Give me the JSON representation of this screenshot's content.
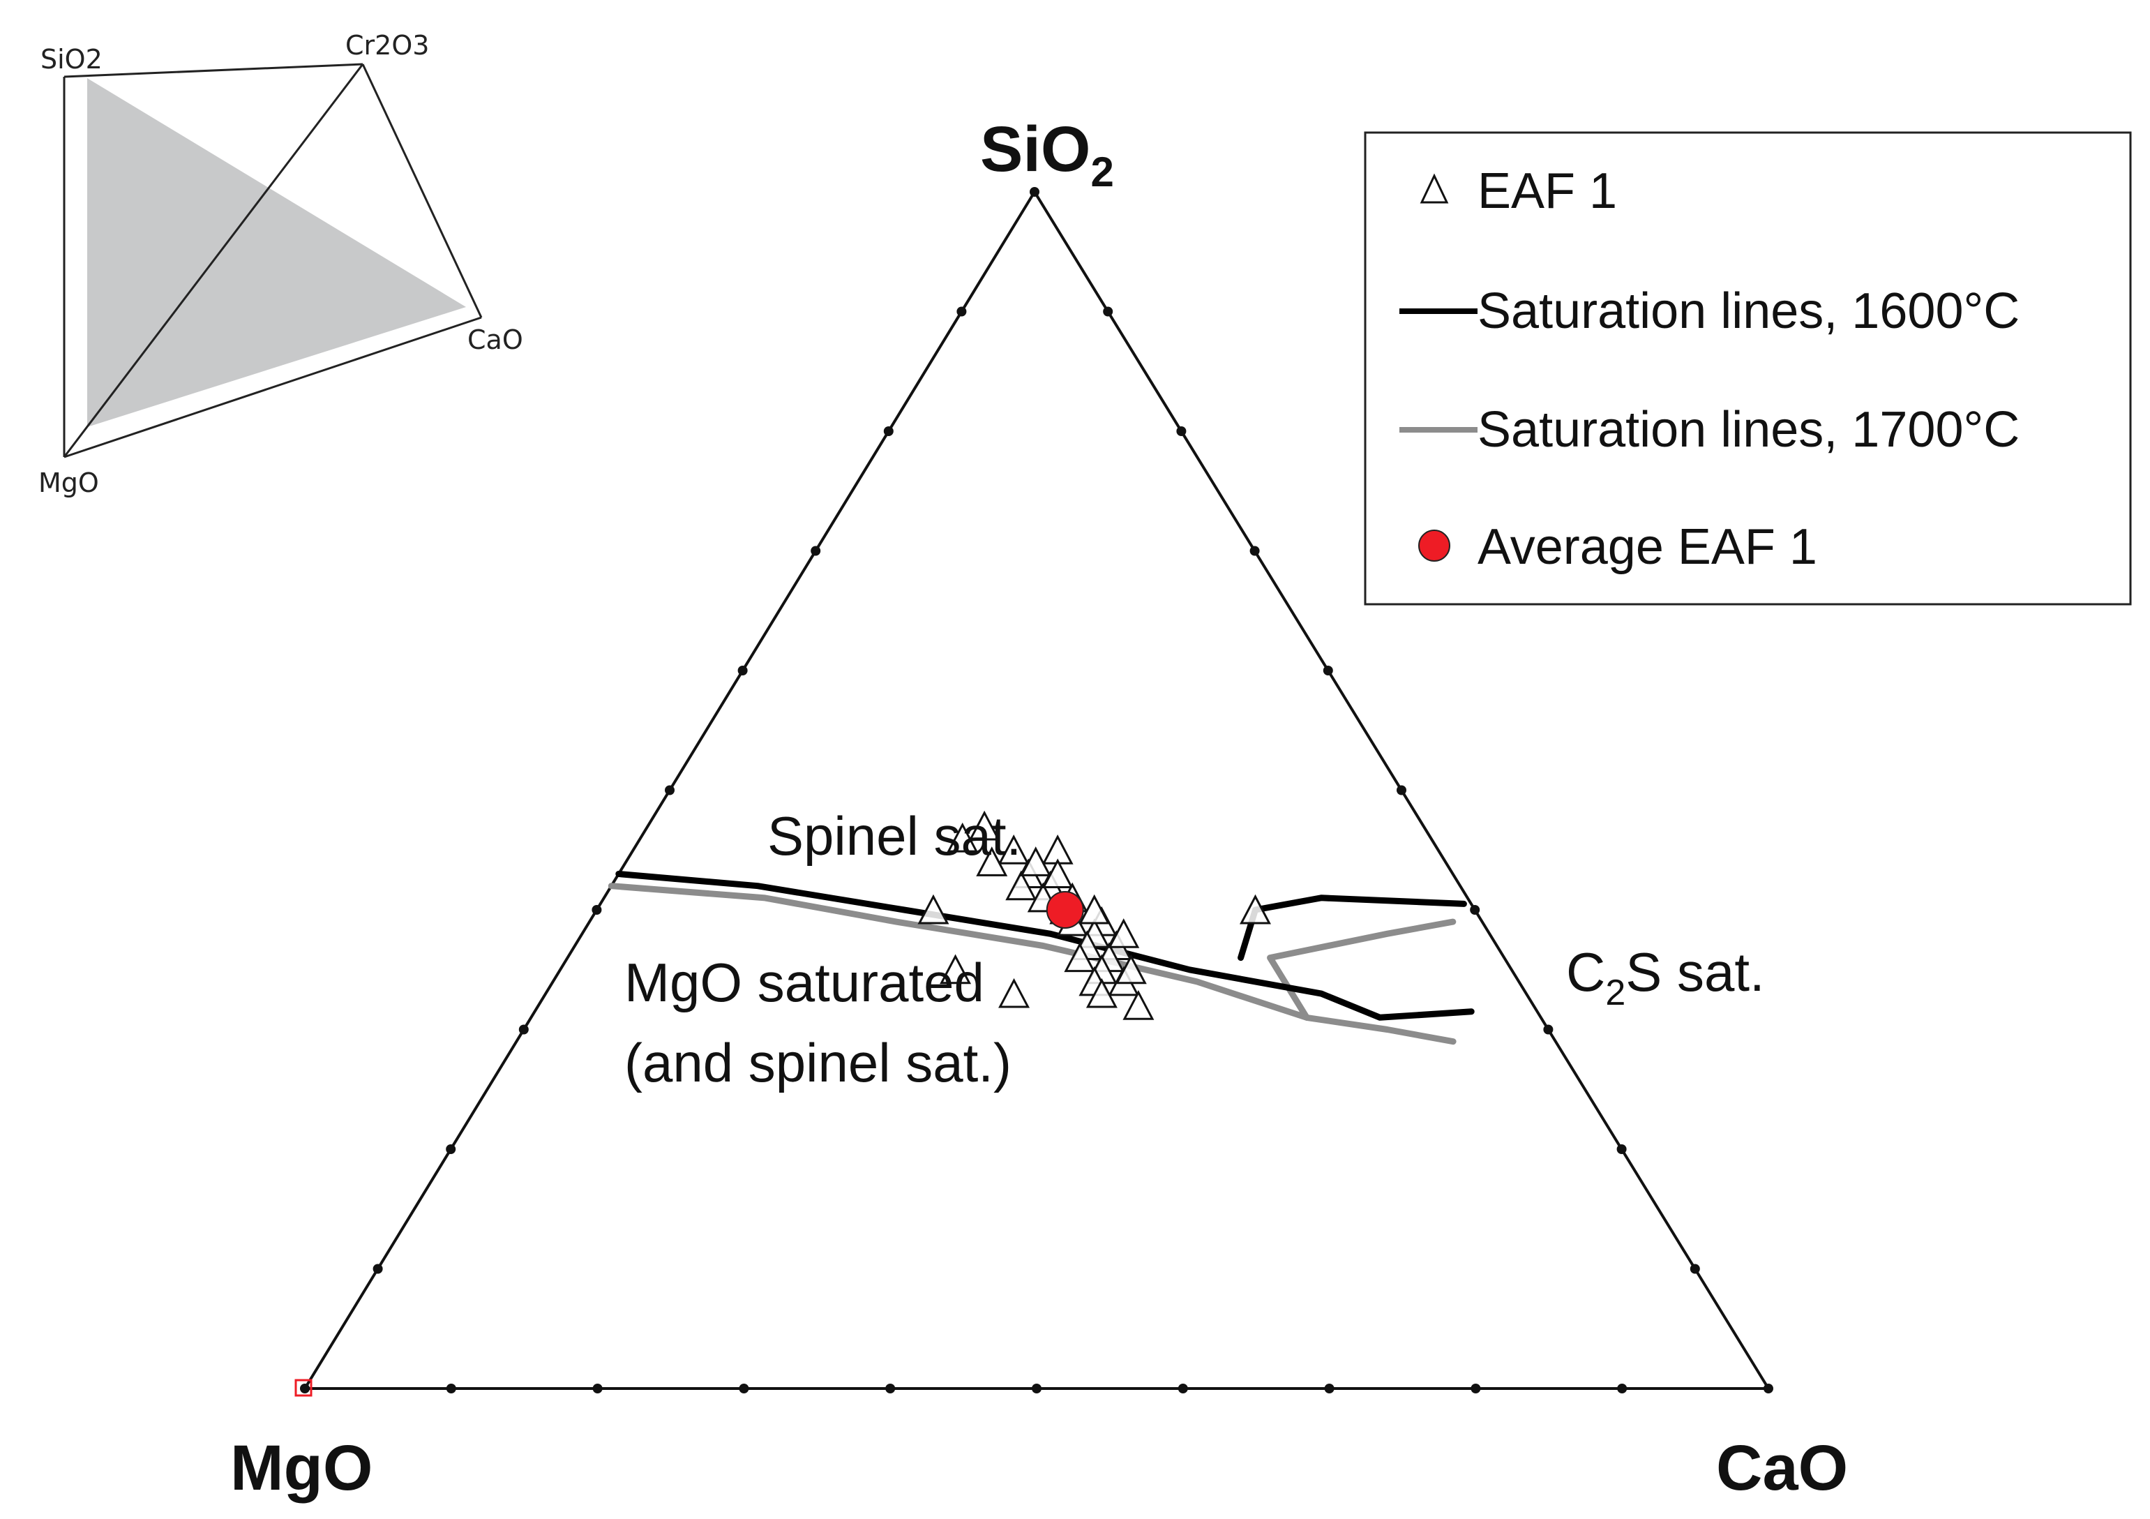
{
  "chart_data": {
    "type": "ternary-scatter",
    "corners": {
      "top": {
        "base": "SiO",
        "sub": "2"
      },
      "left": "MgO",
      "right": "CaO"
    },
    "tick_step": 0.1,
    "inset": {
      "vertices": [
        "SiO2",
        "Cr2O3",
        "CaO",
        "MgO"
      ],
      "fill": "#c8c9ca"
    },
    "region_labels": [
      {
        "name": "spinel-sat-label",
        "lines": [
          "Spinel sat."
        ]
      },
      {
        "name": "mgo-saturated-label",
        "lines": [
          "MgO saturated",
          "(and spinel sat.)"
        ]
      },
      {
        "name": "c2s-sat-label",
        "base": "C",
        "sub": "2",
        "rest": "S sat."
      }
    ],
    "legend": {
      "placement": "top-right",
      "entries": [
        {
          "label": "EAF 1",
          "marker": "open-triangle"
        },
        {
          "label": "Saturation lines, 1600°C",
          "marker": "line",
          "color": "#000000"
        },
        {
          "label": "Saturation lines, 1700°C",
          "marker": "line",
          "color": "#8c8c8c"
        },
        {
          "label": "Average EAF 1",
          "marker": "circle",
          "color": "#ee1c25"
        }
      ]
    },
    "series": [
      {
        "name": "EAF 1",
        "points": [
          {
            "SiO2": 0.47,
            "MgO": 0.3,
            "CaO": 0.23
          },
          {
            "SiO2": 0.45,
            "MgO": 0.29,
            "CaO": 0.26
          },
          {
            "SiO2": 0.46,
            "MgO": 0.32,
            "CaO": 0.22
          },
          {
            "SiO2": 0.44,
            "MgO": 0.31,
            "CaO": 0.25
          },
          {
            "SiO2": 0.45,
            "MgO": 0.26,
            "CaO": 0.29
          },
          {
            "SiO2": 0.43,
            "MgO": 0.29,
            "CaO": 0.28
          },
          {
            "SiO2": 0.42,
            "MgO": 0.3,
            "CaO": 0.28
          },
          {
            "SiO2": 0.44,
            "MgO": 0.28,
            "CaO": 0.28
          },
          {
            "SiO2": 0.42,
            "MgO": 0.28,
            "CaO": 0.3
          },
          {
            "SiO2": 0.41,
            "MgO": 0.29,
            "CaO": 0.3
          },
          {
            "SiO2": 0.43,
            "MgO": 0.27,
            "CaO": 0.3
          },
          {
            "SiO2": 0.41,
            "MgO": 0.27,
            "CaO": 0.32
          },
          {
            "SiO2": 0.4,
            "MgO": 0.28,
            "CaO": 0.32
          },
          {
            "SiO2": 0.39,
            "MgO": 0.28,
            "CaO": 0.33
          },
          {
            "SiO2": 0.39,
            "MgO": 0.26,
            "CaO": 0.35
          },
          {
            "SiO2": 0.38,
            "MgO": 0.27,
            "CaO": 0.35
          },
          {
            "SiO2": 0.37,
            "MgO": 0.28,
            "CaO": 0.35
          },
          {
            "SiO2": 0.37,
            "MgO": 0.26,
            "CaO": 0.37
          },
          {
            "SiO2": 0.36,
            "MgO": 0.27,
            "CaO": 0.37
          },
          {
            "SiO2": 0.4,
            "MgO": 0.26,
            "CaO": 0.34
          },
          {
            "SiO2": 0.36,
            "MgO": 0.29,
            "CaO": 0.35
          },
          {
            "SiO2": 0.35,
            "MgO": 0.28,
            "CaO": 0.37
          },
          {
            "SiO2": 0.34,
            "MgO": 0.29,
            "CaO": 0.37
          },
          {
            "SiO2": 0.34,
            "MgO": 0.27,
            "CaO": 0.39
          },
          {
            "SiO2": 0.35,
            "MgO": 0.26,
            "CaO": 0.39
          },
          {
            "SiO2": 0.38,
            "MgO": 0.25,
            "CaO": 0.37
          },
          {
            "SiO2": 0.4,
            "MgO": 0.37,
            "CaO": 0.23
          },
          {
            "SiO2": 0.35,
            "MgO": 0.38,
            "CaO": 0.27
          },
          {
            "SiO2": 0.33,
            "MgO": 0.35,
            "CaO": 0.32
          },
          {
            "SiO2": 0.33,
            "MgO": 0.29,
            "CaO": 0.38
          },
          {
            "SiO2": 0.32,
            "MgO": 0.27,
            "CaO": 0.41
          },
          {
            "SiO2": 0.4,
            "MgO": 0.15,
            "CaO": 0.45
          }
        ]
      },
      {
        "name": "Average EAF 1",
        "points": [
          {
            "SiO2": 0.4,
            "MgO": 0.28,
            "CaO": 0.32
          }
        ]
      },
      {
        "name": "Saturation lines, 1600°C",
        "segments": [
          [
            {
              "SiO2": 0.43,
              "MgO": 0.57,
              "CaO": 0.0
            },
            {
              "SiO2": 0.42,
              "MgO": 0.48,
              "CaO": 0.1
            },
            {
              "SiO2": 0.4,
              "MgO": 0.39,
              "CaO": 0.21
            },
            {
              "SiO2": 0.38,
              "MgO": 0.3,
              "CaO": 0.32
            },
            {
              "SiO2": 0.35,
              "MgO": 0.22,
              "CaO": 0.43
            },
            {
              "SiO2": 0.33,
              "MgO": 0.14,
              "CaO": 0.53
            },
            {
              "SiO2": 0.31,
              "MgO": 0.11,
              "CaO": 0.58
            },
            {
              "SiO2": 0.315,
              "MgO": 0.045,
              "CaO": 0.64
            }
          ],
          [
            {
              "SiO2": 0.36,
              "MgO": 0.18,
              "CaO": 0.46
            },
            {
              "SiO2": 0.4,
              "MgO": 0.15,
              "CaO": 0.45
            },
            {
              "SiO2": 0.41,
              "MgO": 0.1,
              "CaO": 0.49
            },
            {
              "SiO2": 0.405,
              "MgO": 0.005,
              "CaO": 0.59
            }
          ]
        ]
      },
      {
        "name": "Saturation lines, 1700°C",
        "segments": [
          [
            {
              "SiO2": 0.42,
              "MgO": 0.58,
              "CaO": 0.0
            },
            {
              "SiO2": 0.41,
              "MgO": 0.48,
              "CaO": 0.11
            },
            {
              "SiO2": 0.39,
              "MgO": 0.4,
              "CaO": 0.21
            },
            {
              "SiO2": 0.37,
              "MgO": 0.31,
              "CaO": 0.32
            },
            {
              "SiO2": 0.34,
              "MgO": 0.22,
              "CaO": 0.44
            },
            {
              "SiO2": 0.31,
              "MgO": 0.16,
              "CaO": 0.53
            },
            {
              "SiO2": 0.3,
              "MgO": 0.11,
              "CaO": 0.59
            },
            {
              "SiO2": 0.29,
              "MgO": 0.07,
              "CaO": 0.64
            }
          ],
          [
            {
              "SiO2": 0.31,
              "MgO": 0.16,
              "CaO": 0.53
            },
            {
              "SiO2": 0.36,
              "MgO": 0.16,
              "CaO": 0.48
            },
            {
              "SiO2": 0.38,
              "MgO": 0.07,
              "CaO": 0.55
            },
            {
              "SiO2": 0.39,
              "MgO": 0.02,
              "CaO": 0.59
            }
          ]
        ]
      }
    ]
  }
}
